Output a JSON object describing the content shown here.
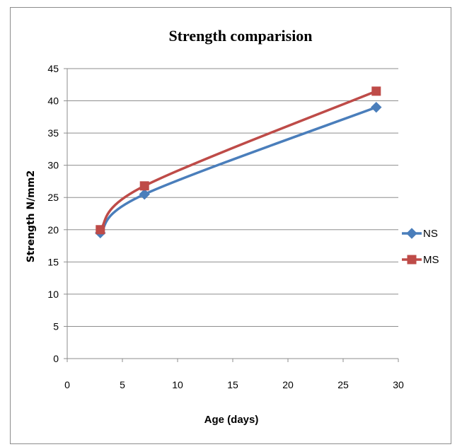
{
  "chart_data": {
    "type": "line",
    "title": "Strength comparision",
    "xlabel": "Age (days)",
    "ylabel": "Strength N/mm2",
    "xlim": [
      0,
      30
    ],
    "ylim": [
      0,
      45
    ],
    "x_ticks": [
      0,
      5,
      10,
      15,
      20,
      25,
      30
    ],
    "y_ticks": [
      0,
      5,
      10,
      15,
      20,
      25,
      30,
      35,
      40,
      45
    ],
    "grid": "horizontal",
    "legend_position": "right",
    "series": [
      {
        "name": "NS",
        "color": "#4a7ebb",
        "marker": "diamond",
        "x": [
          3,
          7,
          28
        ],
        "y": [
          19.5,
          25.5,
          39
        ]
      },
      {
        "name": "MS",
        "color": "#be4b48",
        "marker": "square",
        "x": [
          3,
          7,
          28
        ],
        "y": [
          20,
          26.8,
          41.5
        ]
      }
    ]
  }
}
